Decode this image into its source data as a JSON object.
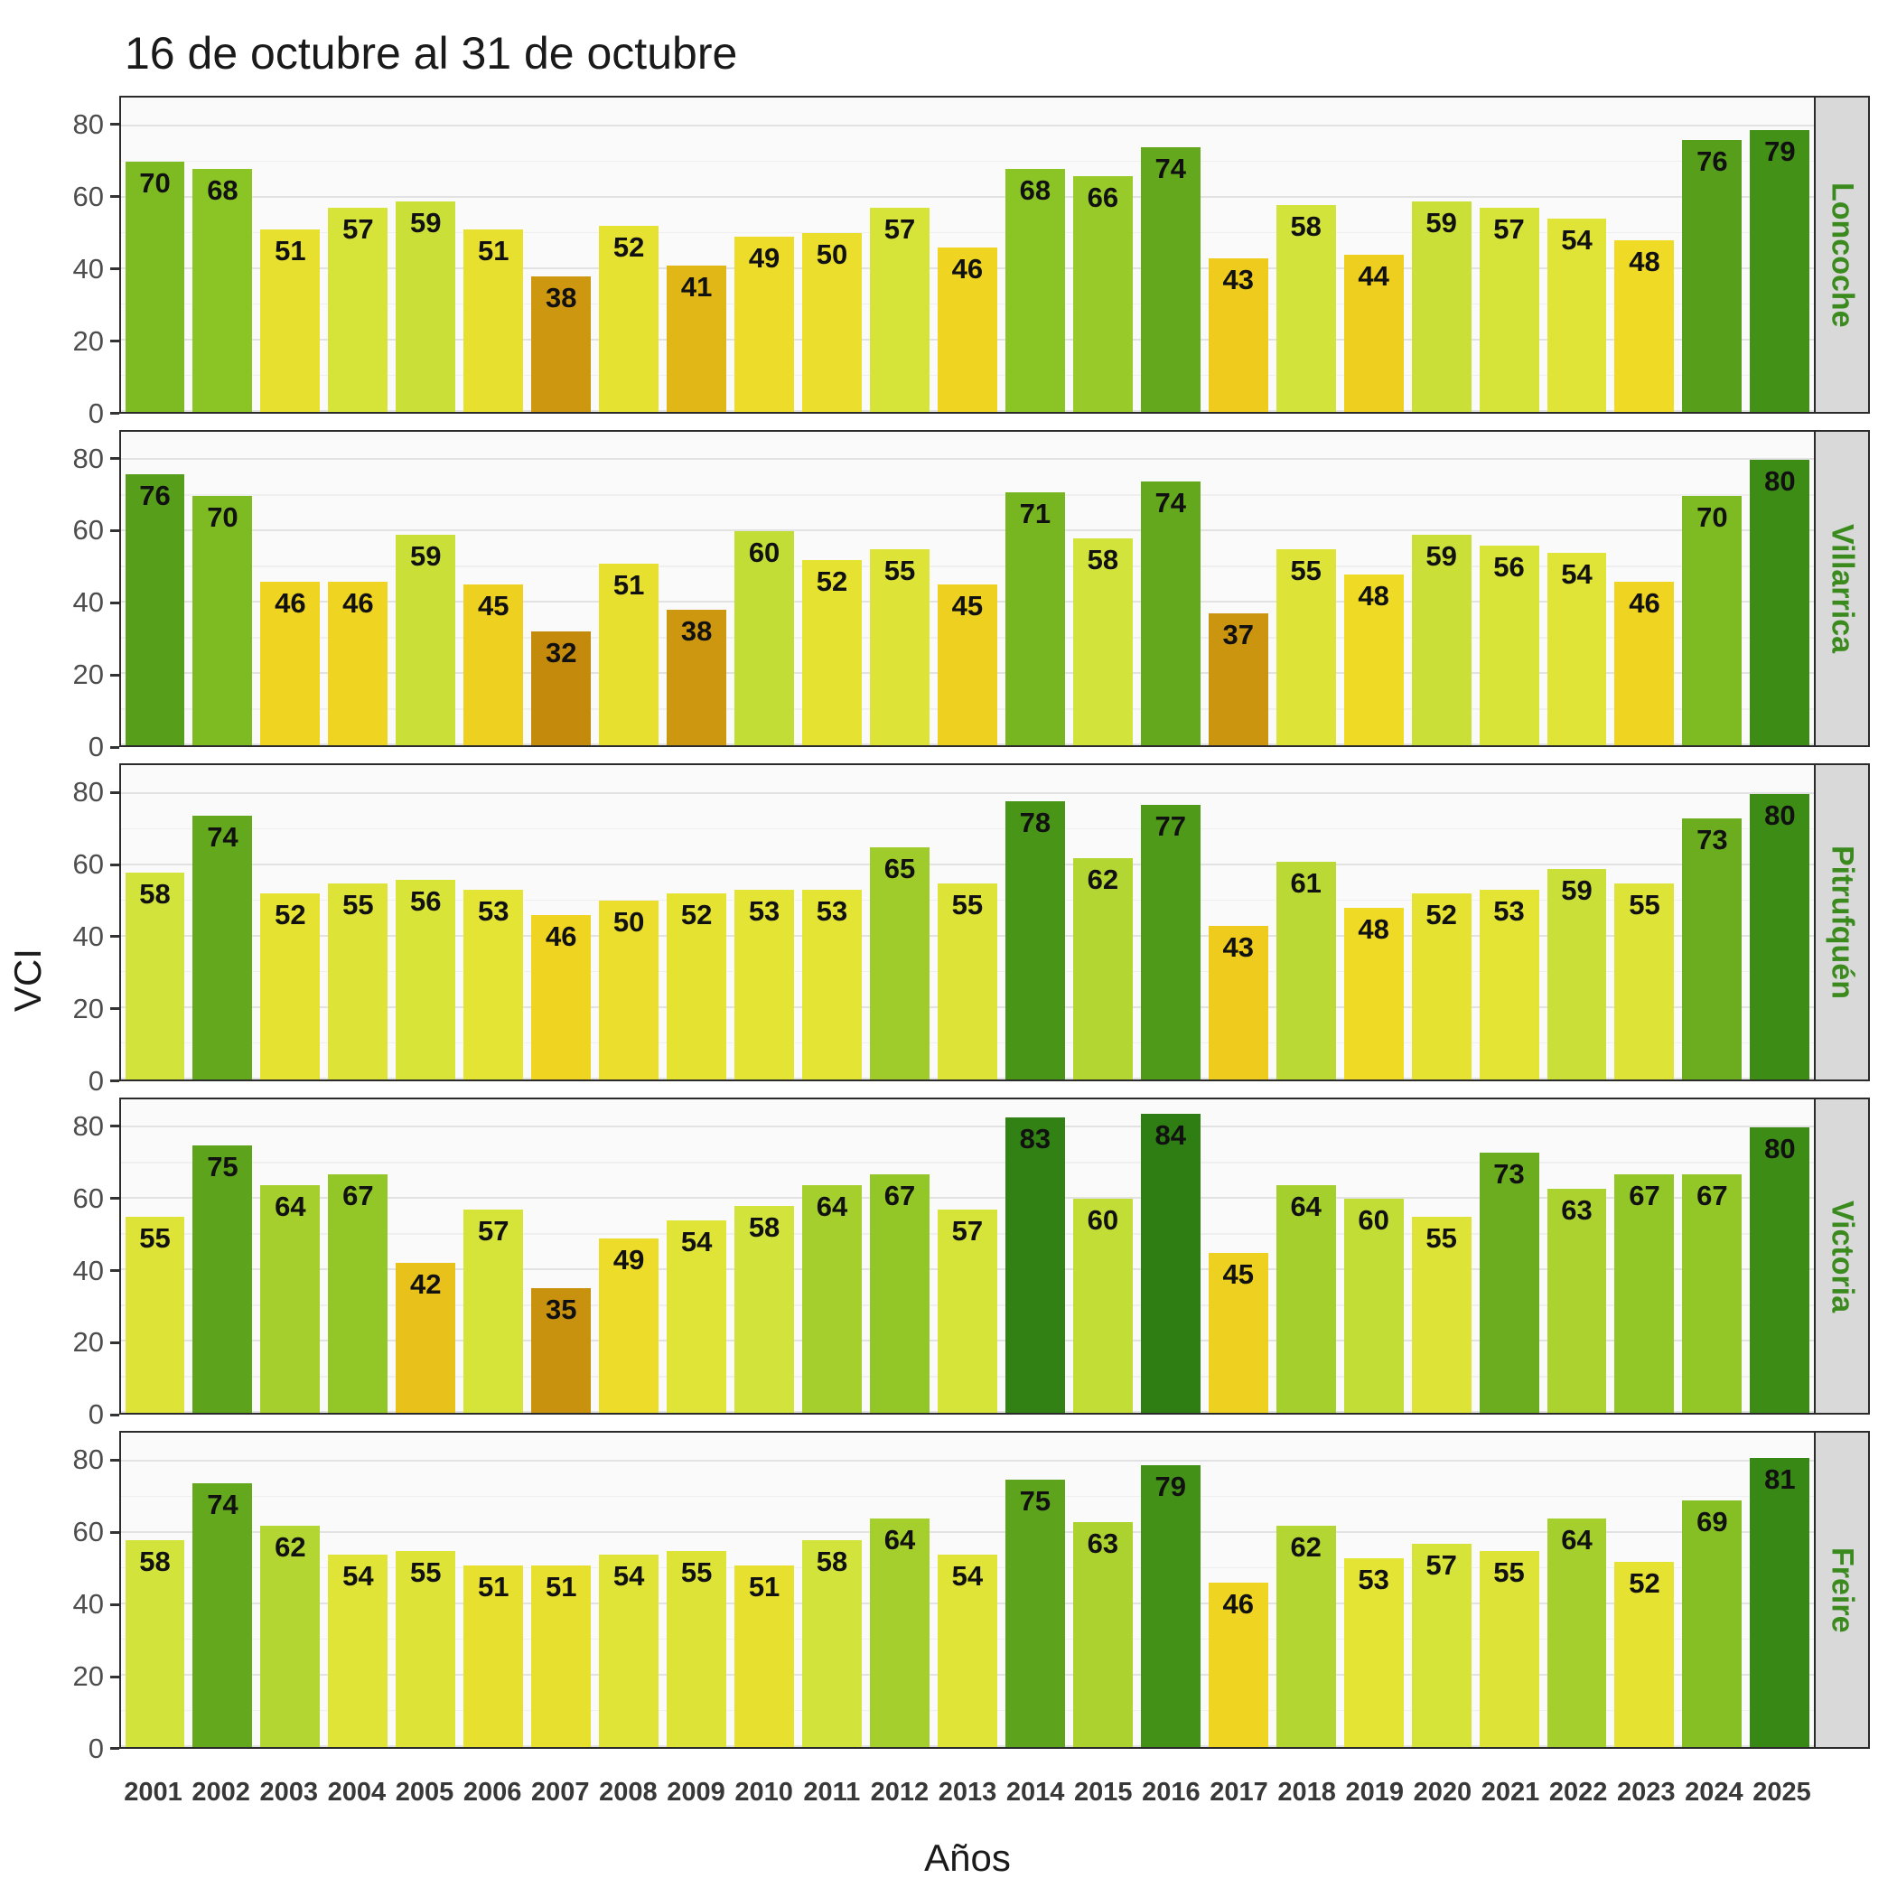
{
  "title": "16 de octubre al 31 de octubre",
  "xlabel": "Años",
  "ylabel": "VCI",
  "chart_data": {
    "type": "bar",
    "title": "16 de octubre al 31 de octubre",
    "xlabel": "Años",
    "ylabel": "VCI",
    "ylim": [
      0,
      88
    ],
    "yticks": [
      0,
      20,
      40,
      60,
      80
    ],
    "yticks_minor": [
      10,
      30,
      50,
      70
    ],
    "grid": "on",
    "legend": "none",
    "facet_layout": "rows",
    "categories": [
      "2001",
      "2002",
      "2003",
      "2004",
      "2005",
      "2006",
      "2007",
      "2008",
      "2009",
      "2010",
      "2011",
      "2012",
      "2013",
      "2014",
      "2015",
      "2016",
      "2017",
      "2018",
      "2019",
      "2020",
      "2021",
      "2022",
      "2023",
      "2024",
      "2025"
    ],
    "series": [
      {
        "name": "Loncoche",
        "values": [
          70,
          68,
          51,
          57,
          59,
          51,
          38,
          52,
          41,
          49,
          50,
          57,
          46,
          68,
          66,
          74,
          43,
          58,
          44,
          59,
          57,
          54,
          48,
          76,
          79
        ]
      },
      {
        "name": "Villarrica",
        "values": [
          76,
          70,
          46,
          46,
          59,
          45,
          32,
          51,
          38,
          60,
          52,
          55,
          45,
          71,
          58,
          74,
          37,
          55,
          48,
          59,
          56,
          54,
          46,
          70,
          80
        ]
      },
      {
        "name": "Pitrufquén",
        "values": [
          58,
          74,
          52,
          55,
          56,
          53,
          46,
          50,
          52,
          53,
          53,
          65,
          55,
          78,
          62,
          77,
          43,
          61,
          48,
          52,
          53,
          59,
          55,
          73,
          80
        ]
      },
      {
        "name": "Victoria",
        "values": [
          55,
          75,
          64,
          67,
          42,
          57,
          35,
          49,
          54,
          58,
          64,
          67,
          57,
          83,
          60,
          84,
          45,
          64,
          60,
          55,
          73,
          63,
          67,
          67,
          80
        ]
      },
      {
        "name": "Freire",
        "values": [
          58,
          74,
          62,
          54,
          55,
          51,
          51,
          54,
          55,
          51,
          58,
          64,
          54,
          75,
          63,
          79,
          46,
          62,
          53,
          57,
          55,
          64,
          52,
          69,
          81
        ]
      }
    ],
    "color_scale": [
      [
        30,
        "#BF860B"
      ],
      [
        38,
        "#CE9710"
      ],
      [
        43,
        "#EECB1C"
      ],
      [
        48,
        "#EFDA26"
      ],
      [
        53,
        "#E4E434"
      ],
      [
        58,
        "#D2E43C"
      ],
      [
        63,
        "#ACD22F"
      ],
      [
        68,
        "#8BC425"
      ],
      [
        74,
        "#64A81D"
      ],
      [
        80,
        "#3C8C16"
      ],
      [
        85,
        "#2A7A12"
      ]
    ],
    "colors": {
      "panel_background": "#fafafa",
      "panel_border": "#2b2b2b",
      "grid_major": "#e2e2e2",
      "grid_minor": "#efefef",
      "strip_background": "#d9d9d9",
      "strip_text": "#3a8a1e",
      "bar_value_text": "#111111",
      "axis_tick_text": "#4d4d4d",
      "year_label_text": "#383838"
    }
  }
}
